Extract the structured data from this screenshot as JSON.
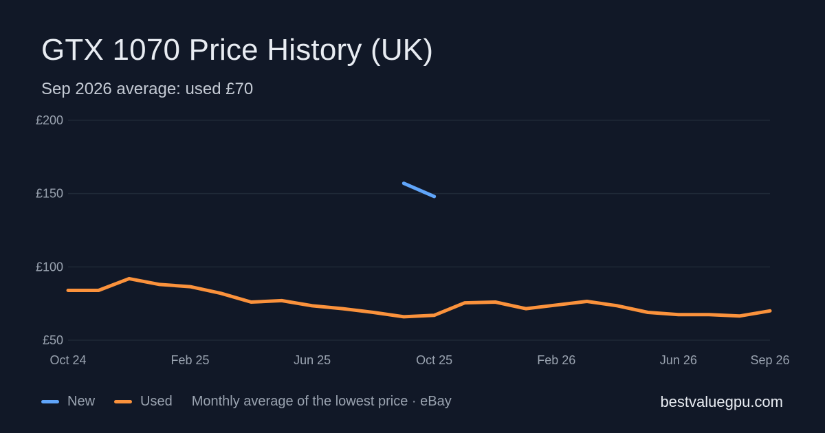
{
  "title": "GTX 1070 Price History (UK)",
  "subtitle": "Sep 2026 average: used £70",
  "legend": {
    "new_label": "New",
    "used_label": "Used",
    "note": "Monthly average of the lowest price · eBay"
  },
  "site": "bestvaluegpu.com",
  "colors": {
    "background": "#111827",
    "new": "#60a5fa",
    "used": "#fb923c",
    "grid": "#1f2937"
  },
  "chart_data": {
    "type": "line",
    "title": "GTX 1070 Price History (UK)",
    "xlabel": "",
    "ylabel": "",
    "x": [
      "Oct 24",
      "Nov 24",
      "Dec 24",
      "Jan 25",
      "Feb 25",
      "Mar 25",
      "Apr 25",
      "May 25",
      "Jun 25",
      "Jul 25",
      "Aug 25",
      "Sep 25",
      "Oct 25",
      "Nov 25",
      "Dec 25",
      "Jan 26",
      "Feb 26",
      "Mar 26",
      "Apr 26",
      "May 26",
      "Jun 26",
      "Jul 26",
      "Aug 26",
      "Sep 26"
    ],
    "x_tick_labels": [
      "Oct 24",
      "Feb 25",
      "Jun 25",
      "Oct 25",
      "Feb 26",
      "Jun 26",
      "Sep 26"
    ],
    "y_ticks": [
      50,
      100,
      150,
      200
    ],
    "y_tick_labels": [
      "£50",
      "£100",
      "£150",
      "£200"
    ],
    "ylim": [
      50,
      200
    ],
    "grid": true,
    "legend_position": "bottom-left",
    "series": [
      {
        "name": "New",
        "values": [
          null,
          null,
          null,
          null,
          null,
          null,
          null,
          null,
          null,
          null,
          null,
          157,
          148,
          null,
          null,
          null,
          null,
          null,
          null,
          null,
          null,
          null,
          null,
          null
        ]
      },
      {
        "name": "Used",
        "values": [
          84,
          84,
          92,
          88,
          86.5,
          82,
          76,
          77,
          73.5,
          71.5,
          69,
          66,
          67,
          75.5,
          76,
          71.5,
          74,
          76.5,
          73.5,
          69,
          67.5,
          67.5,
          66.5,
          70
        ]
      }
    ]
  }
}
